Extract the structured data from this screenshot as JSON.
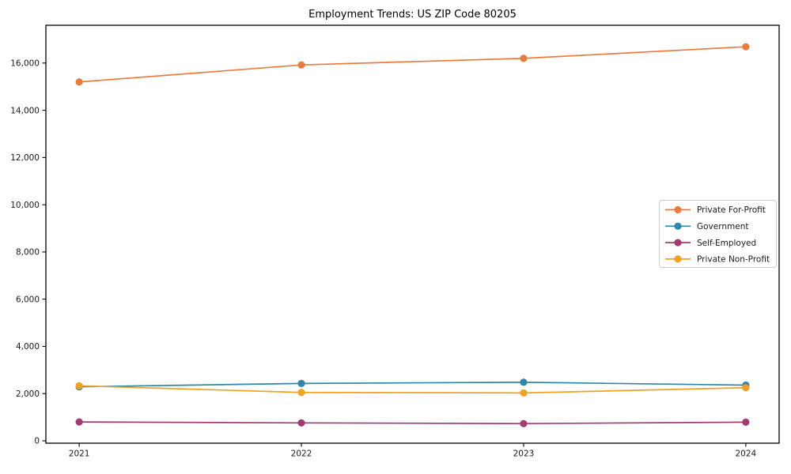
{
  "page": {
    "background": "#ffffff"
  },
  "chart_data": {
    "type": "line",
    "title": "Employment Trends: US ZIP Code 80205",
    "categories": [
      "2021",
      "2022",
      "2023",
      "2024"
    ],
    "x": [
      2021,
      2022,
      2023,
      2024
    ],
    "series": [
      {
        "name": "Private For-Profit",
        "color": "#e97b3c",
        "values": [
          15200,
          15920,
          16200,
          16690
        ]
      },
      {
        "name": "Government",
        "color": "#2e86ab",
        "values": [
          2290,
          2430,
          2480,
          2360
        ]
      },
      {
        "name": "Self-Employed",
        "color": "#a23b72",
        "values": [
          800,
          760,
          730,
          790
        ]
      },
      {
        "name": "Private Non-Profit",
        "color": "#f0a122",
        "values": [
          2330,
          2050,
          2030,
          2250
        ]
      }
    ],
    "xlabel": "",
    "ylabel": "",
    "xlim": [
      2020.85,
      2024.15
    ],
    "ylim": [
      -100,
      17600
    ],
    "yticks": [
      0,
      2000,
      4000,
      6000,
      8000,
      10000,
      12000,
      14000,
      16000
    ],
    "ytick_labels": [
      "0",
      "2,000",
      "4,000",
      "6,000",
      "8,000",
      "10,000",
      "12,000",
      "14,000",
      "16,000"
    ],
    "grid": false,
    "marker": "o",
    "legend": {
      "position": "center right",
      "background": "#ffffff",
      "border_color": "#cccccc",
      "entries": [
        "Private For-Profit",
        "Government",
        "Self-Employed",
        "Private Non-Profit"
      ]
    }
  },
  "style": {
    "spine_color": "#000000",
    "tick_color": "#000000",
    "text_color": "#1a1a1a"
  }
}
